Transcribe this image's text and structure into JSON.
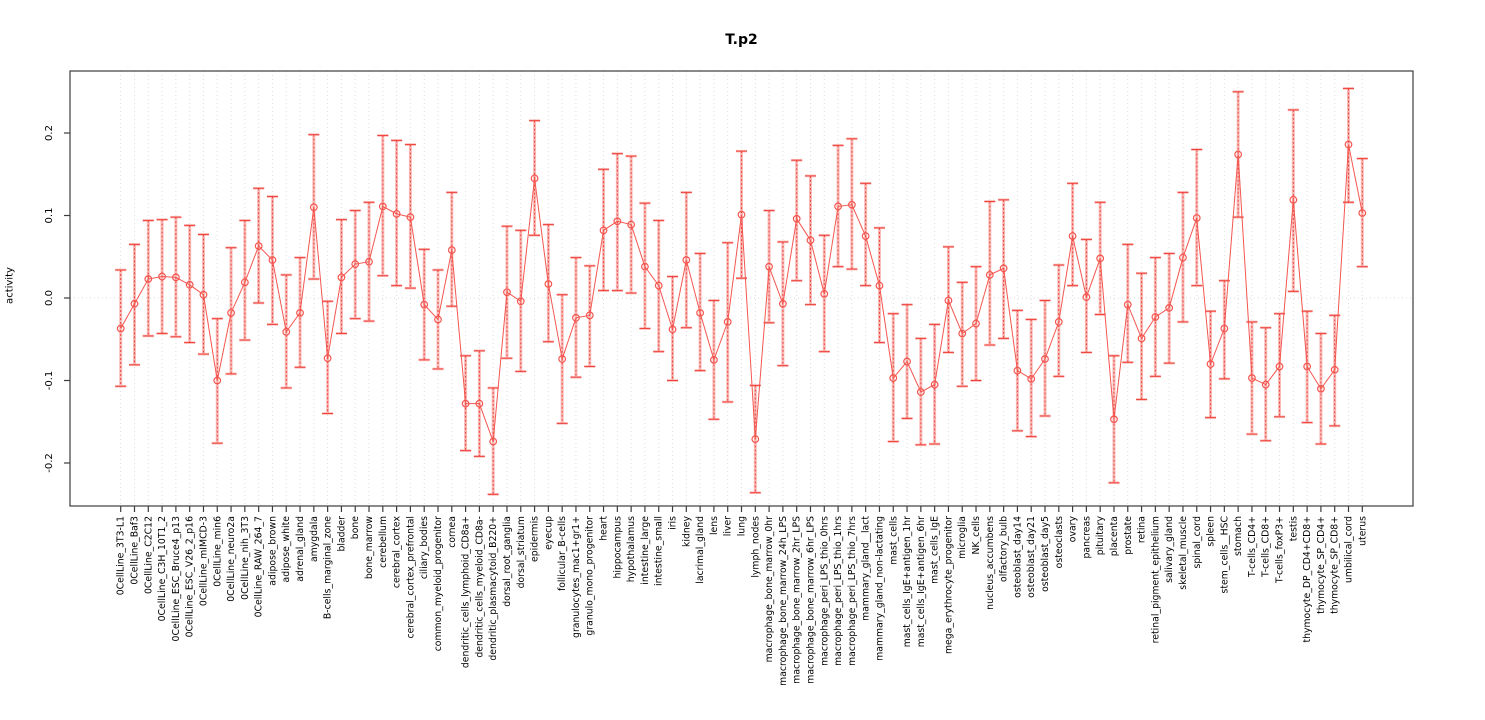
{
  "title": "T.p2",
  "chart_data": {
    "type": "line",
    "title": "T.p2",
    "xlabel": "",
    "ylabel": "activity",
    "ylim": [
      -0.25,
      0.27
    ],
    "yticks": [
      -0.2,
      -0.1,
      0.0,
      0.1,
      0.2
    ],
    "ytick_labels": [
      "-0.2",
      "-0.1",
      "0.0",
      "0.1",
      "0.2"
    ],
    "grid": "dotted vertical line per category, dotted horizontal line at 0",
    "legend_position": "none",
    "series_name": "activity",
    "marker": "open-circle",
    "error_bars": true,
    "categories": [
      "0CellLine_3T3-L1",
      "0CellLine_Baf3",
      "0CellLine_C2C12",
      "0CellLine_C3H_10T1_2",
      "0CellLine_ESC_Bruce4_p13",
      "0CellLine_ESC_V26_2_p16",
      "0CellLine_mIMCD-3",
      "0CellLine_min6",
      "0CellLine_neuro2a",
      "0CellLine_nih_3T3",
      "0CellLine_RAW_264_7",
      "adipose_brown",
      "adipose_white",
      "adrenal_gland",
      "amygdala",
      "B-cells_marginal_zone",
      "bladder",
      "bone",
      "bone_marrow",
      "cerebellum",
      "cerebral_cortex",
      "cerebral_cortex_prefrontal",
      "ciliary_bodies",
      "common_myeloid_progenitor",
      "cornea",
      "dendritic_cells_lymphoid_CD8a+",
      "dendritic_cells_myeloid_CD8a-",
      "dendritic_plasmacytoid_B220+",
      "dorsal_root_ganglia",
      "dorsal_striatum",
      "epidermis",
      "eyecup",
      "follicular_B-cells",
      "granulocytes_mac1+gr1+",
      "granulo_mono_progenitor",
      "heart",
      "hippocampus",
      "hypothalamus",
      "intestine_large",
      "intestine_small",
      "iris",
      "kidney",
      "lacrimal_gland",
      "lens",
      "liver",
      "lung",
      "lymph_nodes",
      "macrophage_bone_marrow_0hr",
      "macrophage_bone_marrow_24h_LPS",
      "macrophage_bone_marrow_2hr_LPS",
      "macrophage_bone_marrow_6hr_LPS",
      "macrophage_peri_LPS_thio_0hrs",
      "macrophage_peri_LPS_thio_1hrs",
      "macrophage_peri_LPS_thio_7hrs",
      "mammary_gland__lact",
      "mammary_gland_non-lactating",
      "mast_cells",
      "mast_cells_IgE+antigen_1hr",
      "mast_cells_IgE+antigen_6hr",
      "mast_cells_IgE",
      "mega_erythrocyte_progenitor",
      "microglia",
      "NK_cells",
      "nucleus_accumbens",
      "olfactory_bulb",
      "osteoblast_day14",
      "osteoblast_day21",
      "osteoblast_day5",
      "osteoclasts",
      "ovary",
      "pancreas",
      "pituitary",
      "placenta",
      "prostate",
      "retina",
      "retinal_pigment_epithelium",
      "salivary_gland",
      "skeletal_muscle",
      "spinal_cord",
      "spleen",
      "stem_cells__HSC",
      "stomach",
      "T-cells_CD4+",
      "T-cells_CD8+",
      "T-cells_foxP3+",
      "testis",
      "thymocyte_DP_CD4+CD8+",
      "thymocyte_SP_CD4+",
      "thymocyte_SP_CD8+",
      "umbilical_cord",
      "uterus"
    ],
    "values": [
      -0.037,
      -0.007,
      0.023,
      0.026,
      0.025,
      0.016,
      0.004,
      -0.1,
      -0.018,
      0.019,
      0.063,
      0.046,
      -0.041,
      -0.018,
      0.11,
      -0.073,
      0.025,
      0.041,
      0.044,
      0.111,
      0.102,
      0.098,
      -0.008,
      -0.026,
      0.058,
      -0.128,
      -0.128,
      -0.174,
      0.007,
      -0.004,
      0.145,
      0.017,
      -0.074,
      -0.024,
      -0.021,
      0.082,
      0.093,
      0.089,
      0.038,
      0.015,
      -0.038,
      0.046,
      -0.018,
      -0.075,
      -0.029,
      0.101,
      -0.171,
      0.038,
      -0.007,
      0.096,
      0.07,
      0.005,
      0.111,
      0.113,
      0.075,
      0.015,
      -0.097,
      -0.077,
      -0.114,
      -0.105,
      -0.003,
      -0.043,
      -0.031,
      0.028,
      0.036,
      -0.088,
      -0.098,
      -0.074,
      -0.029,
      0.075,
      0.001,
      0.048,
      -0.147,
      -0.008,
      -0.049,
      -0.023,
      -0.012,
      0.049,
      0.097,
      -0.08,
      -0.037,
      0.174,
      -0.097,
      -0.105,
      -0.083,
      0.119,
      -0.083,
      -0.11,
      -0.087,
      0.186,
      0.103
    ],
    "error_low": [
      -0.107,
      -0.081,
      -0.046,
      -0.043,
      -0.047,
      -0.054,
      -0.068,
      -0.176,
      -0.092,
      -0.051,
      -0.006,
      -0.032,
      -0.109,
      -0.084,
      0.023,
      -0.14,
      -0.043,
      -0.025,
      -0.028,
      0.027,
      0.015,
      0.012,
      -0.075,
      -0.086,
      -0.01,
      -0.185,
      -0.192,
      -0.238,
      -0.073,
      -0.089,
      0.076,
      -0.053,
      -0.152,
      -0.096,
      -0.083,
      0.009,
      0.009,
      0.006,
      -0.037,
      -0.065,
      -0.1,
      -0.036,
      -0.088,
      -0.147,
      -0.126,
      0.024,
      -0.236,
      -0.03,
      -0.082,
      0.021,
      -0.008,
      -0.065,
      0.038,
      0.035,
      0.015,
      -0.054,
      -0.174,
      -0.146,
      -0.178,
      -0.177,
      -0.066,
      -0.107,
      -0.1,
      -0.057,
      -0.049,
      -0.161,
      -0.168,
      -0.143,
      -0.095,
      0.015,
      -0.066,
      -0.02,
      -0.224,
      -0.078,
      -0.123,
      -0.095,
      -0.079,
      -0.029,
      0.015,
      -0.145,
      -0.098,
      0.098,
      -0.165,
      -0.173,
      -0.144,
      0.008,
      -0.151,
      -0.177,
      -0.155,
      0.116,
      0.038
    ],
    "error_high": [
      0.034,
      0.065,
      0.094,
      0.095,
      0.098,
      0.088,
      0.077,
      -0.025,
      0.061,
      0.094,
      0.133,
      0.123,
      0.028,
      0.049,
      0.198,
      -0.004,
      0.095,
      0.106,
      0.116,
      0.197,
      0.191,
      0.186,
      0.059,
      0.034,
      0.128,
      -0.07,
      -0.064,
      -0.109,
      0.087,
      0.082,
      0.215,
      0.089,
      0.004,
      0.049,
      0.039,
      0.156,
      0.175,
      0.172,
      0.115,
      0.094,
      0.026,
      0.128,
      0.054,
      -0.003,
      0.067,
      0.178,
      -0.106,
      0.106,
      0.068,
      0.167,
      0.148,
      0.076,
      0.185,
      0.193,
      0.139,
      0.085,
      -0.019,
      -0.008,
      -0.049,
      -0.032,
      0.062,
      0.019,
      0.038,
      0.117,
      0.119,
      -0.015,
      -0.026,
      -0.003,
      0.04,
      0.139,
      0.071,
      0.116,
      -0.07,
      0.065,
      0.03,
      0.049,
      0.054,
      0.128,
      0.18,
      -0.016,
      0.021,
      0.25,
      -0.029,
      -0.036,
      -0.019,
      0.228,
      -0.016,
      -0.043,
      -0.021,
      0.254,
      0.169
    ],
    "colors": {
      "line": "#f4564f",
      "point": "#f4564f",
      "error_bar_dark": "#ef423b",
      "error_bar_light": "#f8b0ac",
      "grid": "#dcdcdc",
      "zero_line": "#d8d8d8",
      "box": "#3c3c3c",
      "text": "#000000",
      "background": "#ffffff"
    }
  }
}
